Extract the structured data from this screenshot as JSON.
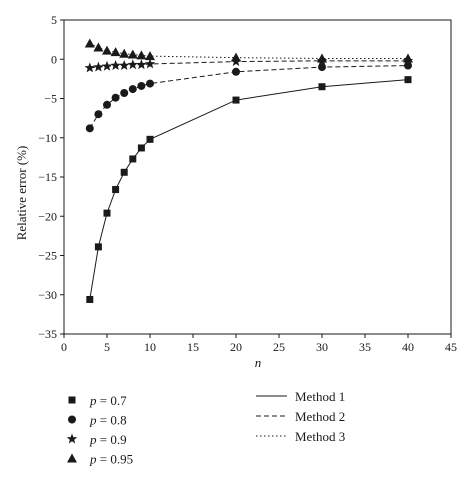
{
  "chart_data": {
    "type": "line",
    "xlabel": "n",
    "ylabel": "Relative error (%)",
    "xlim": [
      0,
      45
    ],
    "ylim": [
      -35,
      5
    ],
    "xticks": [
      0,
      5,
      10,
      15,
      20,
      25,
      30,
      35,
      40,
      45
    ],
    "yticks": [
      5,
      0,
      -5,
      -10,
      -15,
      -20,
      -25,
      -30,
      -35
    ],
    "grid": false,
    "legend_placement": "below",
    "marker_legend": [
      {
        "p_label": "p",
        "value_text": " = 0.7",
        "marker": "square"
      },
      {
        "p_label": "p",
        "value_text": " = 0.8",
        "marker": "circle"
      },
      {
        "p_label": "p",
        "value_text": " = 0.9",
        "marker": "star"
      },
      {
        "p_label": "p",
        "value_text": " = 0.95",
        "marker": "triangle"
      }
    ],
    "method_legend": [
      {
        "label": "Method 1",
        "dash": "solid"
      },
      {
        "label": "Method 2",
        "dash": "dashed"
      },
      {
        "label": "Method 3",
        "dash": "dotted"
      }
    ],
    "series": [
      {
        "p": 0.7,
        "marker": "square",
        "method": "Method 1",
        "x": [
          3,
          4,
          5,
          6,
          7,
          8,
          9,
          10,
          20,
          30,
          40
        ],
        "y": [
          -30.6,
          -23.9,
          -19.6,
          -16.6,
          -14.4,
          -12.7,
          -11.3,
          -10.2,
          -5.2,
          -3.5,
          -2.6
        ]
      },
      {
        "p": 0.8,
        "marker": "circle",
        "method": "Method 2",
        "x": [
          3,
          4,
          5,
          6,
          7,
          8,
          9,
          10,
          20,
          30,
          40
        ],
        "y": [
          -8.8,
          -7.0,
          -5.8,
          -4.9,
          -4.3,
          -3.8,
          -3.4,
          -3.1,
          -1.6,
          -1.0,
          -0.8
        ]
      },
      {
        "p": 0.9,
        "marker": "star",
        "method": "Method 2",
        "x": [
          3,
          4,
          5,
          6,
          7,
          8,
          9,
          10,
          20,
          30,
          40
        ],
        "y": [
          -1.1,
          -1.0,
          -0.9,
          -0.8,
          -0.8,
          -0.7,
          -0.7,
          -0.6,
          -0.3,
          -0.2,
          -0.2
        ]
      },
      {
        "p": 0.95,
        "marker": "triangle",
        "method": "Method 3",
        "x": [
          3,
          4,
          5,
          6,
          7,
          8,
          9,
          10,
          20,
          30,
          40
        ],
        "y": [
          2.0,
          1.5,
          1.1,
          0.9,
          0.7,
          0.6,
          0.5,
          0.4,
          0.2,
          0.1,
          0.1
        ]
      }
    ]
  }
}
